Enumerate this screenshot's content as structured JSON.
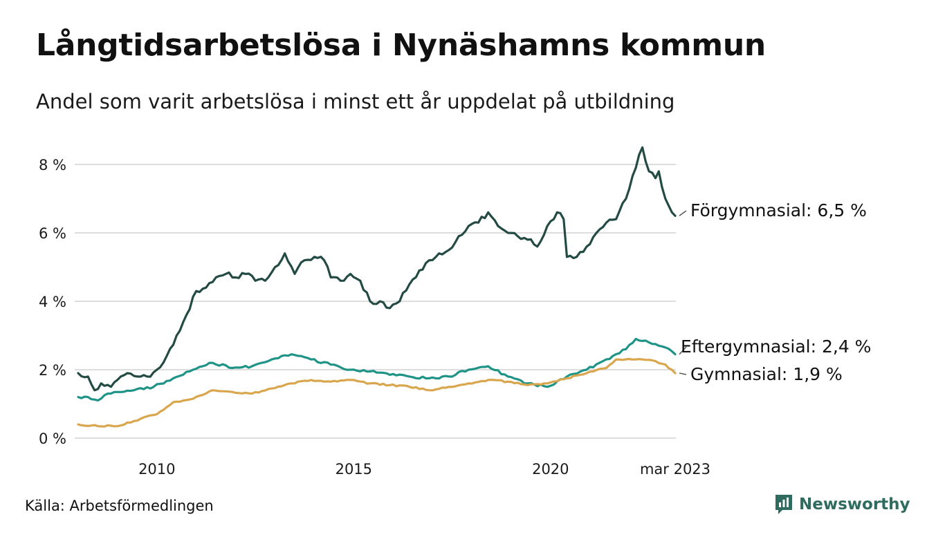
{
  "header": {
    "title": "Långtidsarbetslösa i Nynäshamns kommun",
    "subtitle": "Andel som varit arbetslösa i minst ett år uppdelat på utbildning"
  },
  "footer": {
    "source": "Källa: Arbetsförmedlingen",
    "brand": "Newsworthy"
  },
  "colors": {
    "forgymnasial": "#234b44",
    "eftergymnasial": "#1f9486",
    "gymnasial": "#d9a64e",
    "grid": "#dddddd",
    "brand": "#2f6b5e"
  },
  "icons": {
    "brand_logo": "chart-speech-bubble-icon"
  },
  "chart_data": {
    "type": "line",
    "x_start": "2008-01",
    "x_step": "month",
    "x_end": "2023-03",
    "x_ticks": [
      {
        "label": "2010",
        "date": "2010-01"
      },
      {
        "label": "2015",
        "date": "2015-01"
      },
      {
        "label": "2020",
        "date": "2020-01"
      },
      {
        "label": "mar 2023",
        "date": "2023-03"
      }
    ],
    "y_ticks": [
      {
        "value": 0,
        "label": "0 %"
      },
      {
        "value": 2,
        "label": "2 %"
      },
      {
        "value": 4,
        "label": "4 %"
      },
      {
        "value": 6,
        "label": "6 %"
      },
      {
        "value": 8,
        "label": "8 %"
      }
    ],
    "ylim": [
      0,
      8.5
    ],
    "grid": true,
    "legend": "end-labels",
    "series": [
      {
        "name": "Förgymnasial",
        "end_label": "Förgymnasial: 6,5 %",
        "color": "#234b44",
        "anchors": [
          [
            "2008-01",
            1.9
          ],
          [
            "2008-04",
            1.8
          ],
          [
            "2008-06",
            1.4
          ],
          [
            "2008-08",
            1.6
          ],
          [
            "2008-11",
            1.5
          ],
          [
            "2009-02",
            1.8
          ],
          [
            "2009-04",
            1.9
          ],
          [
            "2009-07",
            1.8
          ],
          [
            "2009-10",
            1.8
          ],
          [
            "2010-01",
            2.0
          ],
          [
            "2010-04",
            2.4
          ],
          [
            "2010-07",
            3.0
          ],
          [
            "2010-10",
            3.6
          ],
          [
            "2011-01",
            4.3
          ],
          [
            "2011-04",
            4.4
          ],
          [
            "2011-07",
            4.7
          ],
          [
            "2011-10",
            4.8
          ],
          [
            "2012-01",
            4.7
          ],
          [
            "2012-04",
            4.8
          ],
          [
            "2012-07",
            4.6
          ],
          [
            "2012-10",
            4.6
          ],
          [
            "2013-01",
            5.0
          ],
          [
            "2013-04",
            5.4
          ],
          [
            "2013-07",
            4.8
          ],
          [
            "2013-10",
            5.2
          ],
          [
            "2014-01",
            5.3
          ],
          [
            "2014-04",
            5.2
          ],
          [
            "2014-06",
            4.7
          ],
          [
            "2014-09",
            4.6
          ],
          [
            "2014-12",
            4.8
          ],
          [
            "2015-03",
            4.6
          ],
          [
            "2015-06",
            4.0
          ],
          [
            "2015-09",
            4.0
          ],
          [
            "2015-12",
            3.8
          ],
          [
            "2016-03",
            4.0
          ],
          [
            "2016-06",
            4.5
          ],
          [
            "2016-09",
            4.9
          ],
          [
            "2016-12",
            5.2
          ],
          [
            "2017-03",
            5.4
          ],
          [
            "2017-06",
            5.5
          ],
          [
            "2017-09",
            5.9
          ],
          [
            "2017-12",
            6.2
          ],
          [
            "2018-03",
            6.3
          ],
          [
            "2018-06",
            6.6
          ],
          [
            "2018-09",
            6.2
          ],
          [
            "2018-12",
            6.0
          ],
          [
            "2019-03",
            5.9
          ],
          [
            "2019-06",
            5.8
          ],
          [
            "2019-09",
            5.6
          ],
          [
            "2019-12",
            6.2
          ],
          [
            "2020-03",
            6.6
          ],
          [
            "2020-05",
            6.4
          ],
          [
            "2020-06",
            5.3
          ],
          [
            "2020-09",
            5.3
          ],
          [
            "2020-12",
            5.6
          ],
          [
            "2021-03",
            6.0
          ],
          [
            "2021-06",
            6.3
          ],
          [
            "2021-09",
            6.4
          ],
          [
            "2021-12",
            7.0
          ],
          [
            "2022-03",
            7.9
          ],
          [
            "2022-05",
            8.5
          ],
          [
            "2022-07",
            7.8
          ],
          [
            "2022-09",
            7.6
          ],
          [
            "2022-10",
            7.8
          ],
          [
            "2022-12",
            7.0
          ],
          [
            "2023-01",
            6.8
          ],
          [
            "2023-02",
            6.6
          ],
          [
            "2023-03",
            6.5
          ]
        ]
      },
      {
        "name": "Eftergymnasial",
        "end_label": "Eftergymnasial: 2,4 %",
        "color": "#1f9486",
        "anchors": [
          [
            "2008-01",
            1.2
          ],
          [
            "2008-04",
            1.2
          ],
          [
            "2008-07",
            1.1
          ],
          [
            "2008-10",
            1.3
          ],
          [
            "2009-01",
            1.35
          ],
          [
            "2009-06",
            1.4
          ],
          [
            "2009-12",
            1.5
          ],
          [
            "2010-06",
            1.75
          ],
          [
            "2010-12",
            2.0
          ],
          [
            "2011-06",
            2.2
          ],
          [
            "2011-12",
            2.05
          ],
          [
            "2012-06",
            2.1
          ],
          [
            "2012-12",
            2.3
          ],
          [
            "2013-06",
            2.45
          ],
          [
            "2013-12",
            2.3
          ],
          [
            "2014-06",
            2.15
          ],
          [
            "2014-12",
            2.0
          ],
          [
            "2015-06",
            1.95
          ],
          [
            "2015-12",
            1.85
          ],
          [
            "2016-06",
            1.8
          ],
          [
            "2016-12",
            1.75
          ],
          [
            "2017-06",
            1.8
          ],
          [
            "2017-12",
            2.0
          ],
          [
            "2018-06",
            2.1
          ],
          [
            "2018-12",
            1.8
          ],
          [
            "2019-06",
            1.6
          ],
          [
            "2019-12",
            1.5
          ],
          [
            "2020-06",
            1.8
          ],
          [
            "2020-12",
            2.0
          ],
          [
            "2021-06",
            2.3
          ],
          [
            "2021-12",
            2.6
          ],
          [
            "2022-03",
            2.9
          ],
          [
            "2022-06",
            2.85
          ],
          [
            "2022-09",
            2.75
          ],
          [
            "2022-12",
            2.65
          ],
          [
            "2023-03",
            2.45
          ]
        ]
      },
      {
        "name": "Gymnasial",
        "end_label": "Gymnasial: 1,9 %",
        "color": "#d9a64e",
        "anchors": [
          [
            "2008-01",
            0.4
          ],
          [
            "2008-07",
            0.35
          ],
          [
            "2009-01",
            0.35
          ],
          [
            "2009-06",
            0.5
          ],
          [
            "2010-01",
            0.7
          ],
          [
            "2010-06",
            1.05
          ],
          [
            "2010-12",
            1.15
          ],
          [
            "2011-06",
            1.4
          ],
          [
            "2011-12",
            1.35
          ],
          [
            "2012-06",
            1.3
          ],
          [
            "2012-12",
            1.45
          ],
          [
            "2013-06",
            1.6
          ],
          [
            "2013-12",
            1.7
          ],
          [
            "2014-06",
            1.65
          ],
          [
            "2014-12",
            1.7
          ],
          [
            "2015-06",
            1.6
          ],
          [
            "2015-12",
            1.55
          ],
          [
            "2016-06",
            1.5
          ],
          [
            "2016-12",
            1.4
          ],
          [
            "2017-06",
            1.5
          ],
          [
            "2017-12",
            1.6
          ],
          [
            "2018-06",
            1.7
          ],
          [
            "2018-12",
            1.65
          ],
          [
            "2019-06",
            1.55
          ],
          [
            "2019-12",
            1.6
          ],
          [
            "2020-06",
            1.75
          ],
          [
            "2020-12",
            1.9
          ],
          [
            "2021-06",
            2.05
          ],
          [
            "2021-09",
            2.3
          ],
          [
            "2022-03",
            2.3
          ],
          [
            "2022-09",
            2.25
          ],
          [
            "2022-12",
            2.15
          ],
          [
            "2023-03",
            1.9
          ]
        ]
      }
    ]
  }
}
